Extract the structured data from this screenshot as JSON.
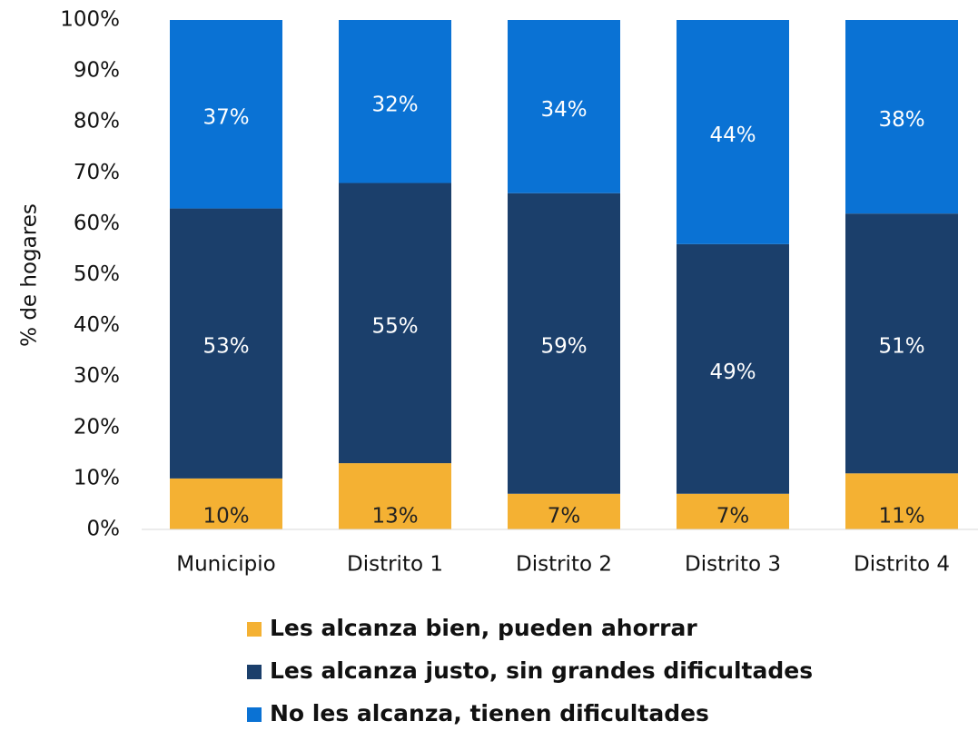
{
  "chart_data": {
    "type": "stacked_bar",
    "y_label": "% de hogares",
    "categories": [
      "Municipio",
      "Distrito 1",
      "Distrito 2",
      "Distrito 3",
      "Distrito 4"
    ],
    "series": [
      {
        "name": "Les alcanza bien, pueden ahorrar",
        "color": "#f4b133",
        "values": [
          10,
          13,
          7,
          7,
          11
        ],
        "value_labels": [
          "10%",
          "13%",
          "7%",
          "7%",
          "11%"
        ]
      },
      {
        "name": "Les alcanza justo, sin grandes dificultades",
        "color": "#1b3f6b",
        "values": [
          53,
          55,
          59,
          49,
          51
        ],
        "value_labels": [
          "53%",
          "55%",
          "59%",
          "49%",
          "51%"
        ]
      },
      {
        "name": "No les alcanza, tienen dificultades",
        "color": "#0a72d4",
        "values": [
          37,
          32,
          34,
          44,
          38
        ],
        "value_labels": [
          "37%",
          "32%",
          "34%",
          "44%",
          "38%"
        ]
      }
    ],
    "ylim": [
      0,
      100
    ],
    "yticks": [
      {
        "value": 0,
        "label": "0%"
      },
      {
        "value": 10,
        "label": "10%"
      },
      {
        "value": 20,
        "label": "20%"
      },
      {
        "value": 30,
        "label": "30%"
      },
      {
        "value": 40,
        "label": "40%"
      },
      {
        "value": 50,
        "label": "50%"
      },
      {
        "value": 60,
        "label": "60%"
      },
      {
        "value": 70,
        "label": "70%"
      },
      {
        "value": 80,
        "label": "80%"
      },
      {
        "value": 90,
        "label": "90%"
      },
      {
        "value": 100,
        "label": "100%"
      }
    ],
    "grid": false,
    "legend": "bottom"
  }
}
